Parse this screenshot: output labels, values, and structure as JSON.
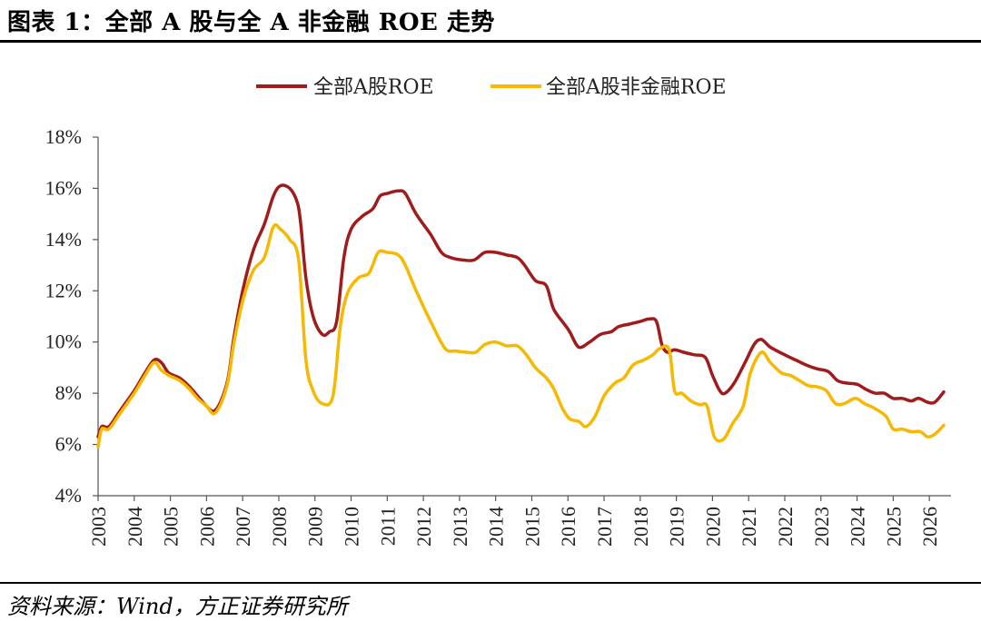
{
  "title": "图表 1：全部 A 股与全 A 非金融 ROE 走势",
  "source": "资料来源：Wind，方正证券研究所",
  "chart_data": {
    "type": "line",
    "title": "",
    "xlabel": "",
    "ylabel": "",
    "x_range": [
      2003,
      2026.6
    ],
    "ylim": [
      4,
      18
    ],
    "y_ticks": [
      "4%",
      "6%",
      "8%",
      "10%",
      "12%",
      "14%",
      "16%",
      "18%"
    ],
    "x_ticks": [
      "2003",
      "2004",
      "2005",
      "2006",
      "2007",
      "2008",
      "2009",
      "2010",
      "2011",
      "2012",
      "2013",
      "2014",
      "2015",
      "2016",
      "2017",
      "2018",
      "2019",
      "2020",
      "2021",
      "2022",
      "2023",
      "2024",
      "2025",
      "2026"
    ],
    "grid": false,
    "legend_position": "top-center",
    "series": [
      {
        "name": "全部A股ROE",
        "color": "#A01C1C",
        "points": [
          [
            2003.0,
            6.3
          ],
          [
            2003.1,
            6.7
          ],
          [
            2003.3,
            6.7
          ],
          [
            2003.6,
            7.3
          ],
          [
            2004.0,
            8.1
          ],
          [
            2004.3,
            8.8
          ],
          [
            2004.55,
            9.3
          ],
          [
            2004.75,
            9.2
          ],
          [
            2004.95,
            8.8
          ],
          [
            2005.25,
            8.6
          ],
          [
            2005.5,
            8.3
          ],
          [
            2005.75,
            7.9
          ],
          [
            2006.0,
            7.5
          ],
          [
            2006.2,
            7.3
          ],
          [
            2006.4,
            7.7
          ],
          [
            2006.6,
            8.6
          ],
          [
            2006.75,
            10.1
          ],
          [
            2007.0,
            12.0
          ],
          [
            2007.3,
            13.6
          ],
          [
            2007.6,
            14.6
          ],
          [
            2007.85,
            15.7
          ],
          [
            2008.05,
            16.1
          ],
          [
            2008.3,
            16.0
          ],
          [
            2008.5,
            15.5
          ],
          [
            2008.6,
            14.7
          ],
          [
            2008.75,
            12.5
          ],
          [
            2008.95,
            11.0
          ],
          [
            2009.2,
            10.3
          ],
          [
            2009.4,
            10.4
          ],
          [
            2009.6,
            10.8
          ],
          [
            2009.8,
            13.3
          ],
          [
            2010.0,
            14.4
          ],
          [
            2010.3,
            14.9
          ],
          [
            2010.6,
            15.2
          ],
          [
            2010.8,
            15.7
          ],
          [
            2011.0,
            15.8
          ],
          [
            2011.3,
            15.9
          ],
          [
            2011.5,
            15.8
          ],
          [
            2011.8,
            15.0
          ],
          [
            2012.2,
            14.2
          ],
          [
            2012.5,
            13.5
          ],
          [
            2012.75,
            13.3
          ],
          [
            2013.1,
            13.2
          ],
          [
            2013.4,
            13.2
          ],
          [
            2013.7,
            13.5
          ],
          [
            2014.0,
            13.5
          ],
          [
            2014.3,
            13.4
          ],
          [
            2014.6,
            13.3
          ],
          [
            2014.8,
            13.0
          ],
          [
            2015.1,
            12.4
          ],
          [
            2015.4,
            12.2
          ],
          [
            2015.6,
            11.3
          ],
          [
            2015.9,
            10.7
          ],
          [
            2016.05,
            10.4
          ],
          [
            2016.3,
            9.8
          ],
          [
            2016.6,
            10.0
          ],
          [
            2016.9,
            10.3
          ],
          [
            2017.2,
            10.4
          ],
          [
            2017.4,
            10.6
          ],
          [
            2017.7,
            10.7
          ],
          [
            2018.0,
            10.8
          ],
          [
            2018.25,
            10.9
          ],
          [
            2018.45,
            10.8
          ],
          [
            2018.6,
            9.9
          ],
          [
            2018.75,
            9.6
          ],
          [
            2018.95,
            9.7
          ],
          [
            2019.2,
            9.6
          ],
          [
            2019.5,
            9.5
          ],
          [
            2019.8,
            9.4
          ],
          [
            2020.0,
            8.7
          ],
          [
            2020.2,
            8.1
          ],
          [
            2020.35,
            8.0
          ],
          [
            2020.6,
            8.4
          ],
          [
            2020.9,
            9.2
          ],
          [
            2021.15,
            9.9
          ],
          [
            2021.35,
            10.1
          ],
          [
            2021.6,
            9.8
          ],
          [
            2022.0,
            9.5
          ],
          [
            2022.3,
            9.3
          ],
          [
            2022.6,
            9.1
          ],
          [
            2022.9,
            8.95
          ],
          [
            2023.2,
            8.85
          ],
          [
            2023.45,
            8.5
          ],
          [
            2023.7,
            8.4
          ],
          [
            2024.0,
            8.35
          ],
          [
            2024.25,
            8.15
          ],
          [
            2024.5,
            8.0
          ],
          [
            2024.75,
            8.0
          ],
          [
            2025.0,
            7.8
          ],
          [
            2025.25,
            7.8
          ],
          [
            2025.5,
            7.7
          ],
          [
            2025.7,
            7.8
          ],
          [
            2025.95,
            7.65
          ],
          [
            2026.15,
            7.65
          ],
          [
            2026.4,
            8.05
          ]
        ]
      },
      {
        "name": "全部A股非金融ROE",
        "color": "#F6B800",
        "points": [
          [
            2003.0,
            5.9
          ],
          [
            2003.1,
            6.6
          ],
          [
            2003.3,
            6.6
          ],
          [
            2003.6,
            7.2
          ],
          [
            2004.0,
            8.0
          ],
          [
            2004.3,
            8.7
          ],
          [
            2004.55,
            9.2
          ],
          [
            2004.75,
            8.9
          ],
          [
            2004.95,
            8.7
          ],
          [
            2005.25,
            8.5
          ],
          [
            2005.5,
            8.2
          ],
          [
            2005.75,
            7.8
          ],
          [
            2006.0,
            7.5
          ],
          [
            2006.2,
            7.2
          ],
          [
            2006.4,
            7.6
          ],
          [
            2006.6,
            8.5
          ],
          [
            2006.75,
            9.9
          ],
          [
            2007.0,
            11.6
          ],
          [
            2007.3,
            12.8
          ],
          [
            2007.6,
            13.3
          ],
          [
            2007.85,
            14.5
          ],
          [
            2008.05,
            14.4
          ],
          [
            2008.3,
            14.0
          ],
          [
            2008.55,
            13.2
          ],
          [
            2008.75,
            9.3
          ],
          [
            2008.95,
            8.1
          ],
          [
            2009.2,
            7.6
          ],
          [
            2009.5,
            7.9
          ],
          [
            2009.7,
            10.6
          ],
          [
            2009.9,
            11.9
          ],
          [
            2010.2,
            12.5
          ],
          [
            2010.5,
            12.7
          ],
          [
            2010.75,
            13.5
          ],
          [
            2011.0,
            13.5
          ],
          [
            2011.3,
            13.4
          ],
          [
            2011.5,
            13.0
          ],
          [
            2011.8,
            12.0
          ],
          [
            2012.2,
            10.8
          ],
          [
            2012.6,
            9.75
          ],
          [
            2012.9,
            9.65
          ],
          [
            2013.2,
            9.6
          ],
          [
            2013.45,
            9.6
          ],
          [
            2013.7,
            9.9
          ],
          [
            2014.0,
            10.0
          ],
          [
            2014.3,
            9.85
          ],
          [
            2014.6,
            9.85
          ],
          [
            2014.85,
            9.5
          ],
          [
            2015.1,
            9.0
          ],
          [
            2015.4,
            8.6
          ],
          [
            2015.6,
            8.2
          ],
          [
            2015.85,
            7.4
          ],
          [
            2016.05,
            7.0
          ],
          [
            2016.3,
            6.9
          ],
          [
            2016.5,
            6.7
          ],
          [
            2016.75,
            7.1
          ],
          [
            2017.0,
            7.9
          ],
          [
            2017.3,
            8.4
          ],
          [
            2017.55,
            8.6
          ],
          [
            2017.8,
            9.1
          ],
          [
            2018.1,
            9.3
          ],
          [
            2018.35,
            9.5
          ],
          [
            2018.55,
            9.75
          ],
          [
            2018.8,
            9.7
          ],
          [
            2018.95,
            8.1
          ],
          [
            2019.15,
            8.0
          ],
          [
            2019.4,
            7.7
          ],
          [
            2019.65,
            7.55
          ],
          [
            2019.85,
            7.5
          ],
          [
            2020.05,
            6.3
          ],
          [
            2020.3,
            6.2
          ],
          [
            2020.55,
            6.8
          ],
          [
            2020.85,
            7.5
          ],
          [
            2021.05,
            8.8
          ],
          [
            2021.35,
            9.6
          ],
          [
            2021.6,
            9.2
          ],
          [
            2021.9,
            8.8
          ],
          [
            2022.15,
            8.7
          ],
          [
            2022.4,
            8.5
          ],
          [
            2022.65,
            8.3
          ],
          [
            2022.9,
            8.25
          ],
          [
            2023.15,
            8.1
          ],
          [
            2023.4,
            7.6
          ],
          [
            2023.65,
            7.6
          ],
          [
            2023.95,
            7.8
          ],
          [
            2024.2,
            7.6
          ],
          [
            2024.5,
            7.4
          ],
          [
            2024.8,
            7.1
          ],
          [
            2025.0,
            6.6
          ],
          [
            2025.25,
            6.6
          ],
          [
            2025.5,
            6.5
          ],
          [
            2025.75,
            6.5
          ],
          [
            2025.95,
            6.3
          ],
          [
            2026.15,
            6.4
          ],
          [
            2026.4,
            6.75
          ]
        ]
      }
    ]
  }
}
